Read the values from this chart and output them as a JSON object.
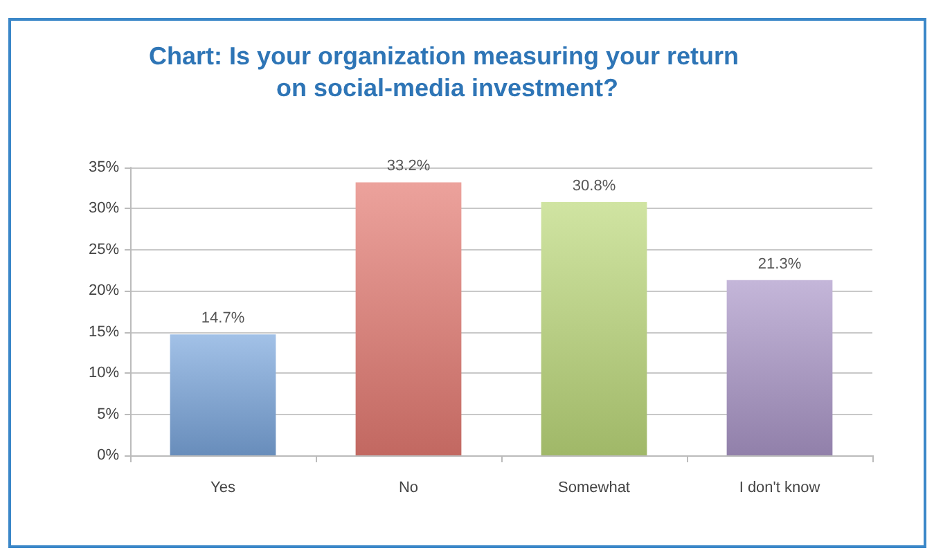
{
  "chart_data": {
    "type": "bar",
    "title": "Chart: Is your organization measuring your return on social-media investment?",
    "categories": [
      "Yes",
      "No",
      "Somewhat",
      "I don't know"
    ],
    "values": [
      14.7,
      33.2,
      30.8,
      21.3
    ],
    "colors": [
      "#7aa6dc",
      "#e47a72",
      "#bcd97a",
      "#ab96c8"
    ],
    "value_labels": [
      "14.7%",
      "33.2%",
      "30.8%",
      "21.3%"
    ],
    "ylim": [
      0,
      35
    ],
    "yticks": [
      {
        "value": 0,
        "label": "0%"
      },
      {
        "value": 5,
        "label": "5%"
      },
      {
        "value": 10,
        "label": "10%"
      },
      {
        "value": 15,
        "label": "15%"
      },
      {
        "value": 20,
        "label": "20%"
      },
      {
        "value": 25,
        "label": "25%"
      },
      {
        "value": 30,
        "label": "30%"
      },
      {
        "value": 35,
        "label": "35%"
      }
    ],
    "grid": "y"
  }
}
